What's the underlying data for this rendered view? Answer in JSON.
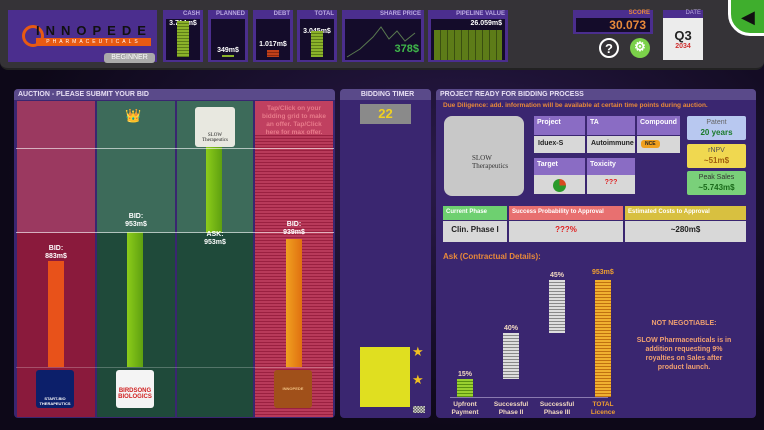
{
  "company": {
    "name": "INNOPEDE",
    "tagline": "PHARMACEUTICALS",
    "level": "BEGINNER"
  },
  "stats": {
    "cash": {
      "label": "CASH",
      "value": "3.714m$",
      "fill": 0.95
    },
    "planned": {
      "label": "PLANNED",
      "value": "349m$",
      "fill": 0.08
    },
    "debt": {
      "label": "DEBT",
      "value": "1.017m$",
      "fill": 0.25,
      "color": "#c0401a"
    },
    "total": {
      "label": "TOTAL",
      "value": "3.045m$",
      "fill": 0.8
    }
  },
  "share_price": {
    "label": "SHARE PRICE",
    "value": "378$"
  },
  "pipeline": {
    "label": "PIPELINE VALUE",
    "value": "26.059m$"
  },
  "score": {
    "label": "SCORE",
    "value": "30.073"
  },
  "date": {
    "label": "DATE",
    "quarter": "Q3",
    "year": "2034"
  },
  "icons": {
    "help": "?",
    "settings": "⚙",
    "back": "◀"
  },
  "auction": {
    "title": "AUCTION - PLEASE SUBMIT YOUR BID",
    "hint": "Tap/Click on your bidding grid to make an offer. Tap/Click here for max offer.",
    "bidders": [
      {
        "name": "START-BIO THERAPEUTICS",
        "bid": "BID:\n883m$",
        "color": "#e8521a"
      },
      {
        "name": "BIRDSONG BIOLOGICS",
        "bid": "BID:\n953m$",
        "color": "#8ccc1a",
        "leader": true
      },
      {
        "name": "SLOW Therapeutics",
        "ask": "ASK:\n953m$",
        "color": "#8ccc1a"
      },
      {
        "name": "INNOPEDE",
        "bid": "BID:\n939m$",
        "color": "#f0a020"
      }
    ]
  },
  "timer": {
    "title": "BIDDING TIMER",
    "value": "22"
  },
  "project": {
    "title": "PROJECT READY FOR BIDDING PROCESS",
    "due_diligence": "Due Diligence: add. information will be available at certain time points during auction.",
    "seller_logo": "SLOW Therapeutics",
    "table": {
      "project_h": "Project",
      "project": "Iduex-S",
      "ta_h": "TA",
      "ta": "Autoimmune",
      "compound_h": "Compound",
      "compound": "NCE",
      "target_h": "Target",
      "toxicity_h": "Toxicity",
      "toxicity": "???"
    },
    "patent": {
      "label": "Patent",
      "value": "20 years"
    },
    "rnpv": {
      "label": "rNPV",
      "value": "~51m$"
    },
    "peak": {
      "label": "Peak Sales",
      "value": "~5.743m$"
    },
    "phase": {
      "label": "Current Phase",
      "value": "Clin. Phase I"
    },
    "prob": {
      "label": "Success Probability to Approval",
      "value": "???%"
    },
    "costs": {
      "label": "Estimated Costs to Approval",
      "value": "~280m$"
    },
    "ask_title": "Ask (Contractual Details):",
    "ask": [
      {
        "label": "Upfront\nPayment",
        "pct": "15%"
      },
      {
        "label": "Successful\nPhase II",
        "pct": "40%"
      },
      {
        "label": "Successful\nPhase III",
        "pct": "45%"
      },
      {
        "label": "TOTAL\nLicence",
        "pct": "953m$"
      }
    ],
    "note_title": "NOT NEGOTIABLE:",
    "note": "SLOW Pharmaceuticals is in addition requesting 9% royalties on Sales after product launch."
  }
}
